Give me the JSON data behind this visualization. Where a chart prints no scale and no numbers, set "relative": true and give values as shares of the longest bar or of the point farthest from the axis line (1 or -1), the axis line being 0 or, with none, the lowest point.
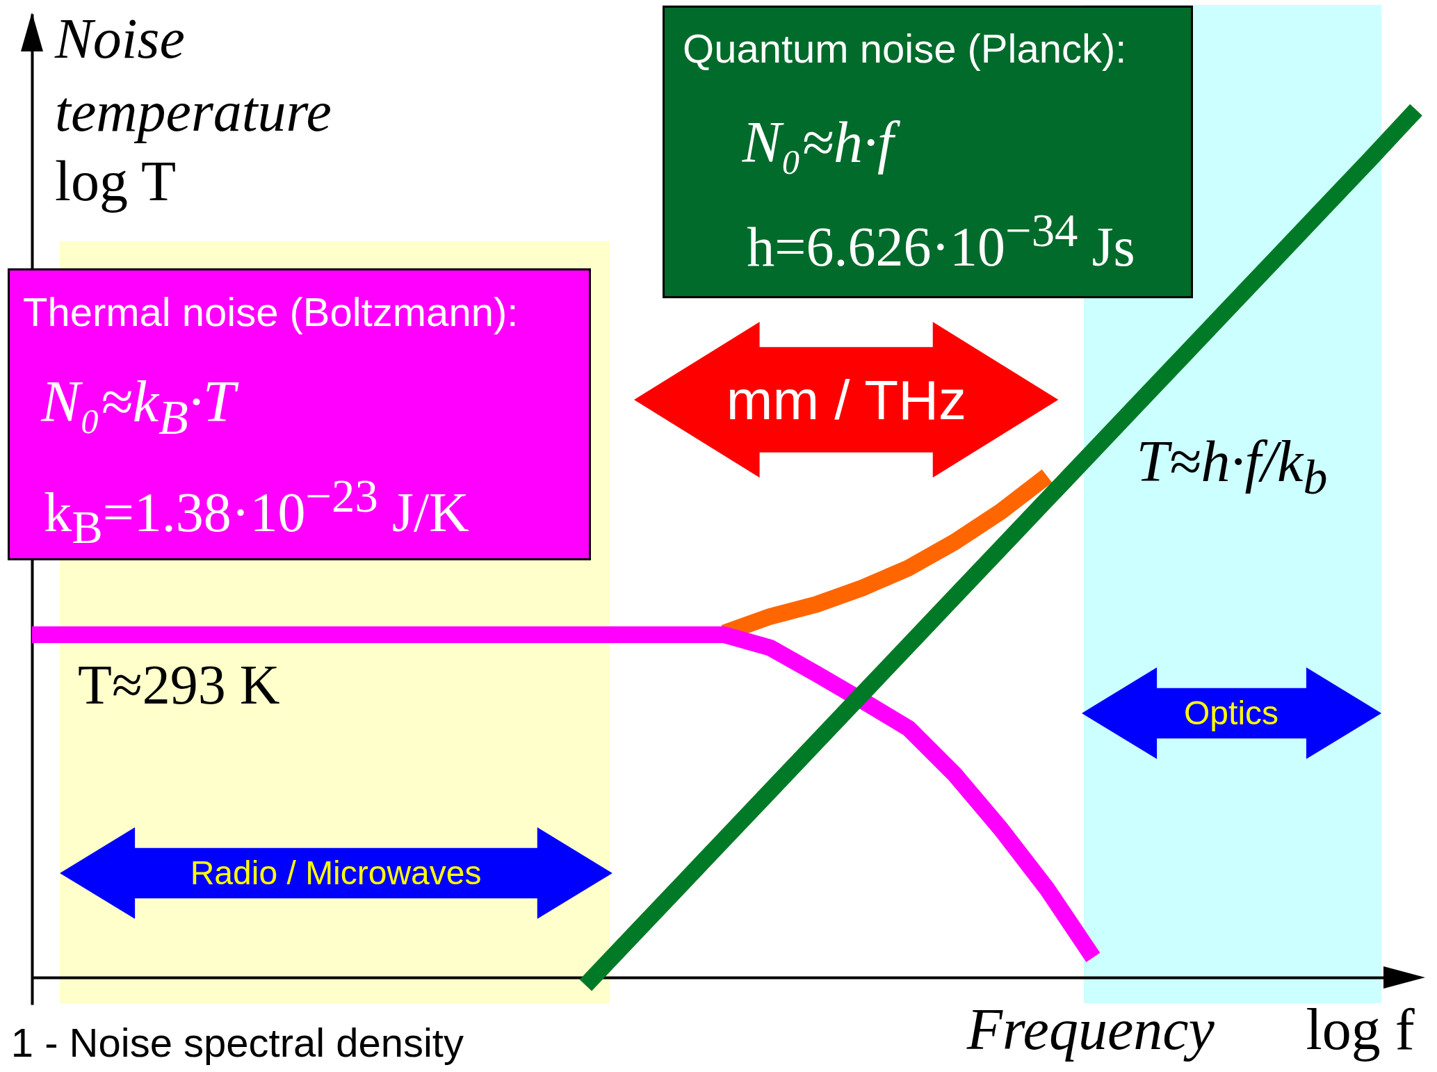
{
  "chart_data": {
    "type": "line",
    "relative": true,
    "xlabel": "Frequency",
    "ylabel": "Noise temperature",
    "categories": [
      null,
      null,
      null,
      null,
      null,
      null,
      null,
      null,
      null,
      null,
      null,
      null,
      null,
      null,
      null,
      null,
      null,
      null,
      null,
      null,
      null,
      null,
      null,
      null,
      null,
      null,
      null,
      null,
      null,
      null,
      null
    ],
    "series": [
      {
        "color": "#ff6600",
        "values": [
          null,
          null,
          null,
          null,
          null,
          null,
          null,
          null,
          null,
          null,
          null,
          null,
          null,
          null,
          null,
          0.397,
          0.416,
          0.43,
          0.449,
          0.472,
          0.502,
          0.537,
          0.578,
          null,
          null,
          null,
          null,
          null,
          null,
          null,
          null
        ]
      },
      {
        "color": "#ff00ff",
        "values": [
          0.395,
          0.395,
          0.395,
          0.395,
          0.395,
          0.395,
          0.395,
          0.395,
          0.395,
          0.395,
          0.395,
          0.395,
          0.395,
          0.395,
          0.395,
          0.395,
          0.38,
          0.35,
          0.319,
          0.287,
          0.234,
          0.171,
          0.102,
          0.023,
          null,
          null,
          null,
          null,
          null,
          null,
          null
        ]
      },
      {
        "color": "#007a26",
        "values": [
          null,
          null,
          null,
          null,
          null,
          null,
          null,
          null,
          null,
          null,
          null,
          null,
          -0.009,
          0.047,
          0.103,
          0.159,
          0.215,
          0.271,
          0.327,
          0.383,
          0.439,
          0.495,
          0.551,
          0.607,
          0.663,
          0.719,
          0.775,
          0.831,
          0.887,
          0.943,
          1
        ]
      }
    ],
    "annotations": [
      "Thermal noise (Boltzmann):",
      "N₀≈k$_{B}$·T",
      "k$_{B}$=1.38·10$^{−23}$ J/K",
      "Quantum noise (Planck):",
      "N₀≈h·f",
      "h=6.626·10$^{−34}$ Js",
      "mm / THz",
      "T≈h·f/k$_{b}$",
      "T≈293 K",
      "log T",
      "log f",
      "1 - Noise spectral density",
      "Radio / Microwaves",
      "Optics"
    ]
  }
}
